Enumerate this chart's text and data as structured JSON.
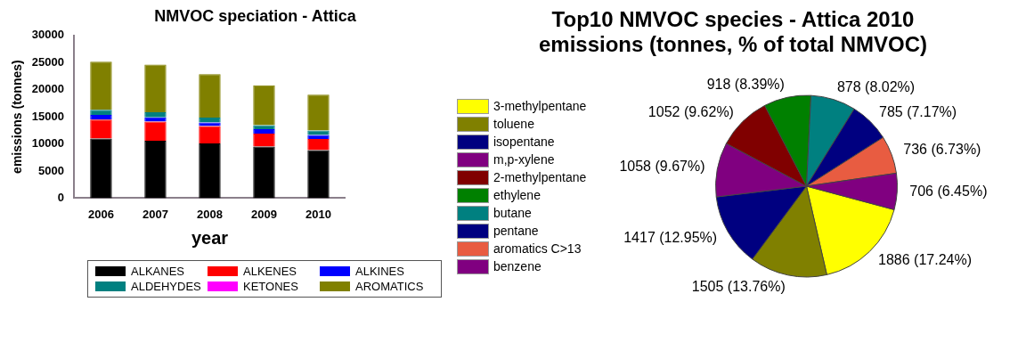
{
  "chart_data": [
    {
      "type": "bar",
      "title": "NMVOC speciation - Attica",
      "xlabel": "year",
      "ylabel": "emissions (tonnes)",
      "categories": [
        "2006",
        "2007",
        "2008",
        "2009",
        "2010"
      ],
      "stacked": true,
      "ylim": [
        0,
        30000
      ],
      "yticks": [
        0,
        5000,
        10000,
        15000,
        20000,
        25000,
        30000
      ],
      "grid": false,
      "legend": "bottom",
      "series": [
        {
          "name": "ALKANES",
          "color": "#000000",
          "values": [
            11000,
            10600,
            10100,
            9500,
            8850
          ]
        },
        {
          "name": "ALKENES",
          "color": "#ff0000",
          "values": [
            3500,
            3500,
            3200,
            2400,
            2050
          ]
        },
        {
          "name": "ALKINES",
          "color": "#0000ff",
          "values": [
            850,
            780,
            650,
            800,
            750
          ]
        },
        {
          "name": "ALDEHYDES",
          "color": "#008080",
          "values": [
            950,
            950,
            900,
            750,
            800
          ]
        },
        {
          "name": "KETONES",
          "color": "#ff00ff",
          "values": [
            null,
            null,
            null,
            null,
            null
          ]
        },
        {
          "name": "AROMATICS",
          "color": "#808000",
          "values": [
            8850,
            8780,
            8000,
            7350,
            6650
          ]
        }
      ]
    },
    {
      "type": "pie",
      "title": "Top10 NMVOC species - Attica 2010 emissions (tonnes, % of total NMVOC)",
      "legend": "left",
      "categories": [
        "3-methylpentane",
        "toluene",
        "isopentane",
        "m,p-xylene",
        "2-methylpentane",
        "ethylene",
        "butane",
        "pentane",
        "aromatics C>13",
        "benzene"
      ],
      "values": [
        1886,
        1505,
        1417,
        1058,
        1052,
        918,
        878,
        785,
        736,
        706
      ],
      "value_labels": [
        "1886 (17.24%)",
        "1505 (13.76%)",
        "1417 (12.95%)",
        "1058 (9.67%)",
        "1052 (9.62%)",
        "918 (8.39%)",
        "878 (8.02%)",
        "785 (7.17%)",
        "736 (6.73%)",
        "706 (6.45%)"
      ],
      "colors": [
        "#ffff00",
        "#808000",
        "#000080",
        "#800080",
        "#800000",
        "#008000",
        "#008080",
        "#000080",
        "#e85c41",
        "#800080"
      ]
    }
  ]
}
